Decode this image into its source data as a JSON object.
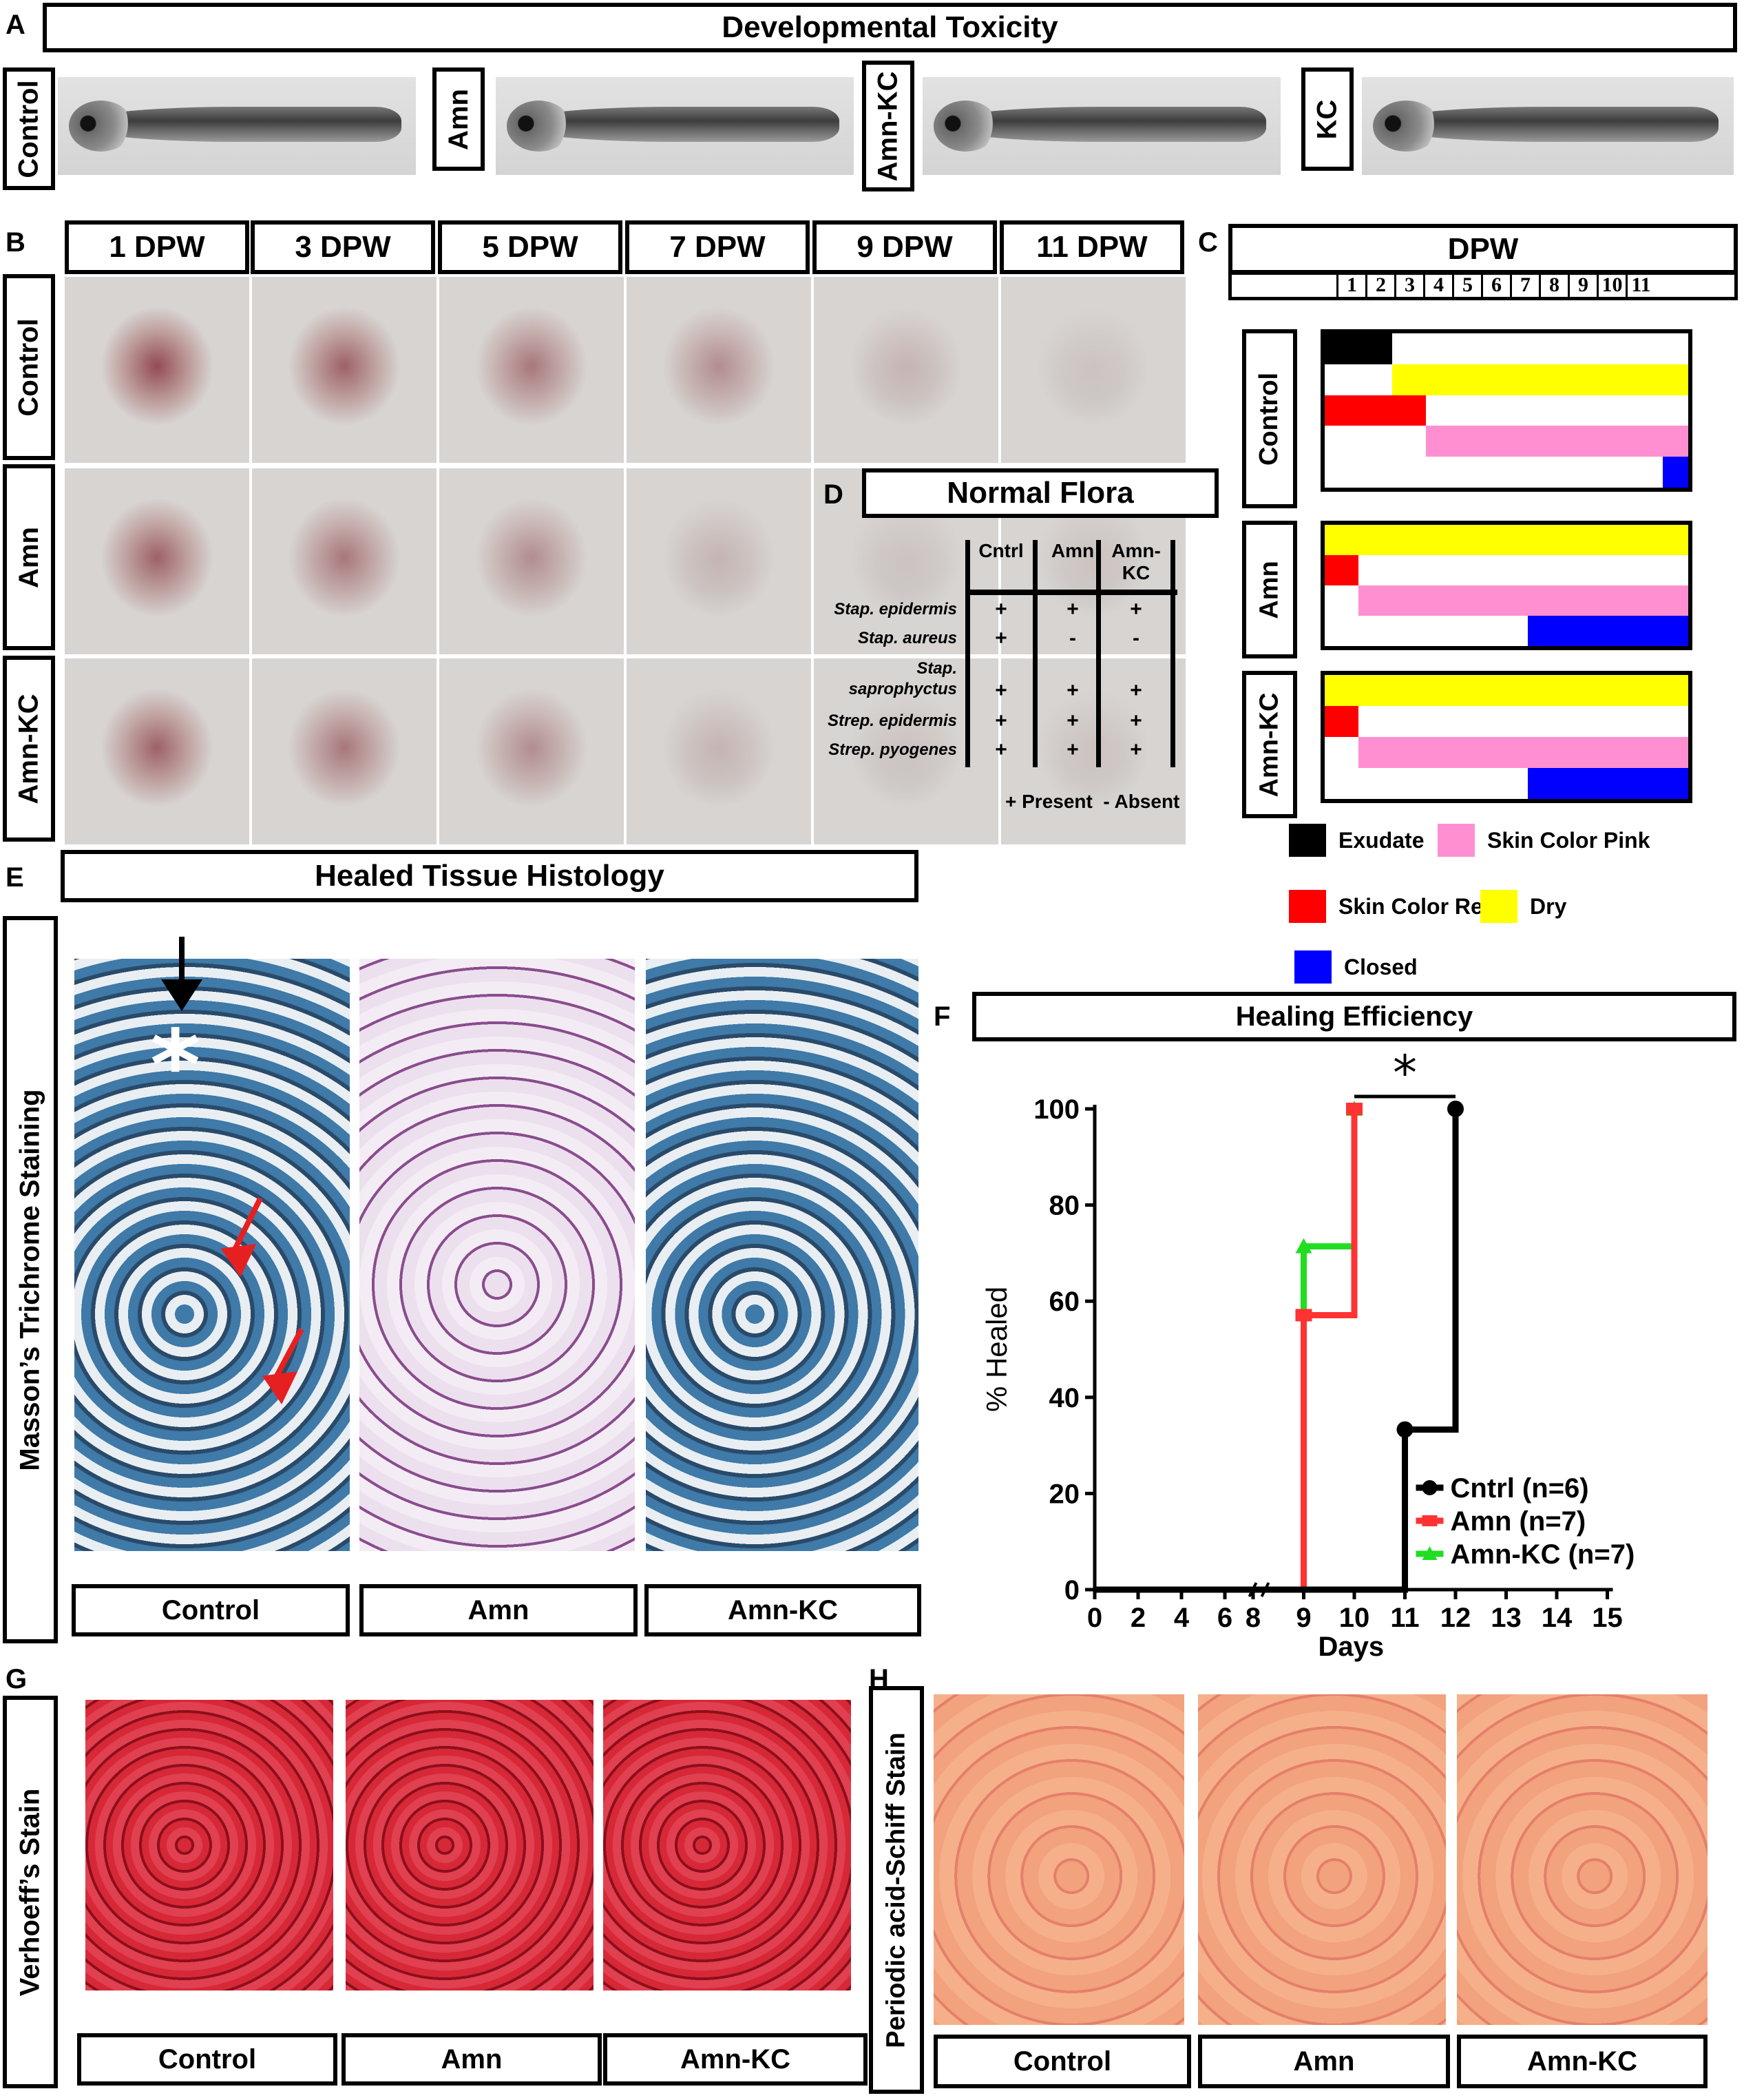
{
  "panels": {
    "A": {
      "letter": "A",
      "title": "Developmental Toxicity",
      "groups": [
        "Control",
        "Amn",
        "Amn-KC",
        "KC"
      ]
    },
    "B": {
      "letter": "B",
      "days": [
        "1 DPW",
        "3 DPW",
        "5 DPW",
        "7 DPW",
        "9 DPW",
        "11 DPW"
      ],
      "rows": [
        "Control",
        "Amn",
        "Amn-KC"
      ]
    },
    "C": {
      "letter": "C",
      "title": "DPW",
      "day_numbers": [
        "1",
        "2",
        "3",
        "4",
        "5",
        "6",
        "7",
        "8",
        "9",
        "10",
        "11"
      ],
      "rows": [
        "Control",
        "Amn",
        "Amn-KC"
      ],
      "legend": [
        {
          "label": "Exudate",
          "color": "#000000"
        },
        {
          "label": "Skin Color Pink",
          "color": "#ff8fd0"
        },
        {
          "label": "Skin Color Red",
          "color": "#ff0000"
        },
        {
          "label": "Dry",
          "color": "#ffff00"
        },
        {
          "label": "Closed",
          "color": "#0000ff"
        }
      ]
    },
    "D": {
      "letter": "D",
      "title": "Normal Flora",
      "columns": [
        "Cntrl",
        "Amn",
        "Amn-KC"
      ],
      "rows": [
        {
          "organism": "Stap. epidermis",
          "values": [
            "+",
            "+",
            "+"
          ]
        },
        {
          "organism": "Stap. aureus",
          "values": [
            "+",
            "-",
            "-"
          ]
        },
        {
          "organism": "Stap. saprophyctus",
          "values": [
            "+",
            "+",
            "+"
          ]
        },
        {
          "organism": "Strep. epidermis",
          "values": [
            "+",
            "+",
            "+"
          ]
        },
        {
          "organism": "Strep. pyogenes",
          "values": [
            "+",
            "+",
            "+"
          ]
        }
      ],
      "legend": "+ Present  - Absent"
    },
    "E": {
      "letter": "E",
      "title": "Healed Tissue Histology",
      "stain": "Masson’s Trichrome Staining",
      "captions": [
        "Control",
        "Amn",
        "Amn-KC"
      ]
    },
    "F": {
      "letter": "F",
      "title": "Healing Efficiency",
      "significance": "*"
    },
    "G": {
      "letter": "G",
      "stain": "Verhoeff’s Stain",
      "captions": [
        "Control",
        "Amn",
        "Amn-KC"
      ]
    },
    "H": {
      "letter": "H",
      "stain": "Periodic acid-Schiff Stain",
      "captions": [
        "Control",
        "Amn",
        "Amn-KC"
      ]
    }
  },
  "chart_data": {
    "type": "line",
    "title": "Healing Efficiency",
    "xlabel": "Days",
    "ylabel": "% Healed",
    "xlim": [
      0,
      15
    ],
    "ylim": [
      0,
      100
    ],
    "x_ticks": [
      "0",
      "2",
      "4",
      "6",
      "8",
      "9",
      "10",
      "11",
      "12",
      "13",
      "14",
      "15"
    ],
    "y_ticks": [
      "0",
      "20",
      "40",
      "60",
      "80",
      "100"
    ],
    "legend_position": "lower-right",
    "series": [
      {
        "name": "Cntrl (n=6)",
        "color": "#000000",
        "marker": "circle",
        "x": [
          0,
          11,
          11,
          12,
          12
        ],
        "y": [
          0,
          0,
          33.3,
          33.3,
          100
        ]
      },
      {
        "name": "Amn (n=7)",
        "color": "#ff3333",
        "marker": "square",
        "x": [
          0,
          9,
          9,
          10,
          10
        ],
        "y": [
          0,
          0,
          57.1,
          57.1,
          100
        ]
      },
      {
        "name": "Amn-KC (n=7)",
        "color": "#22dd22",
        "marker": "triangle",
        "x": [
          0,
          9,
          9,
          10,
          10
        ],
        "y": [
          0,
          0,
          71.4,
          71.4,
          100
        ]
      }
    ]
  }
}
